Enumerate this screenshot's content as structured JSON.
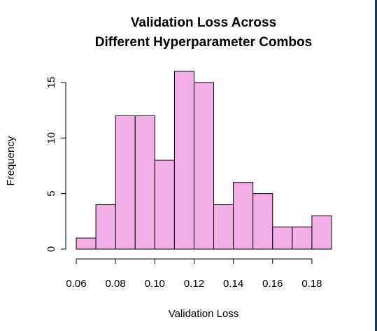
{
  "chart_data": {
    "type": "bar",
    "title": [
      "Validation Loss Across",
      "Different Hyperparameter Combos"
    ],
    "xlabel": "Validation Loss",
    "ylabel": "Frequency",
    "bins": [
      {
        "from": 0.06,
        "to": 0.07,
        "count": 1
      },
      {
        "from": 0.07,
        "to": 0.08,
        "count": 4
      },
      {
        "from": 0.08,
        "to": 0.09,
        "count": 12
      },
      {
        "from": 0.09,
        "to": 0.1,
        "count": 12
      },
      {
        "from": 0.1,
        "to": 0.11,
        "count": 8
      },
      {
        "from": 0.11,
        "to": 0.12,
        "count": 16
      },
      {
        "from": 0.12,
        "to": 0.13,
        "count": 15
      },
      {
        "from": 0.13,
        "to": 0.14,
        "count": 4
      },
      {
        "from": 0.14,
        "to": 0.15,
        "count": 6
      },
      {
        "from": 0.15,
        "to": 0.16,
        "count": 5
      },
      {
        "from": 0.16,
        "to": 0.17,
        "count": 2
      },
      {
        "from": 0.17,
        "to": 0.18,
        "count": 2
      },
      {
        "from": 0.18,
        "to": 0.19,
        "count": 3
      }
    ],
    "xlim": [
      0.06,
      0.19
    ],
    "ylim": [
      0,
      16
    ],
    "x_ticks": [
      "0.06",
      "0.08",
      "0.10",
      "0.12",
      "0.14",
      "0.16",
      "0.18"
    ],
    "y_ticks": [
      "0",
      "5",
      "10",
      "15"
    ],
    "bar_color": "#f4aee6",
    "bar_border_color": "#000000",
    "grid": false
  }
}
